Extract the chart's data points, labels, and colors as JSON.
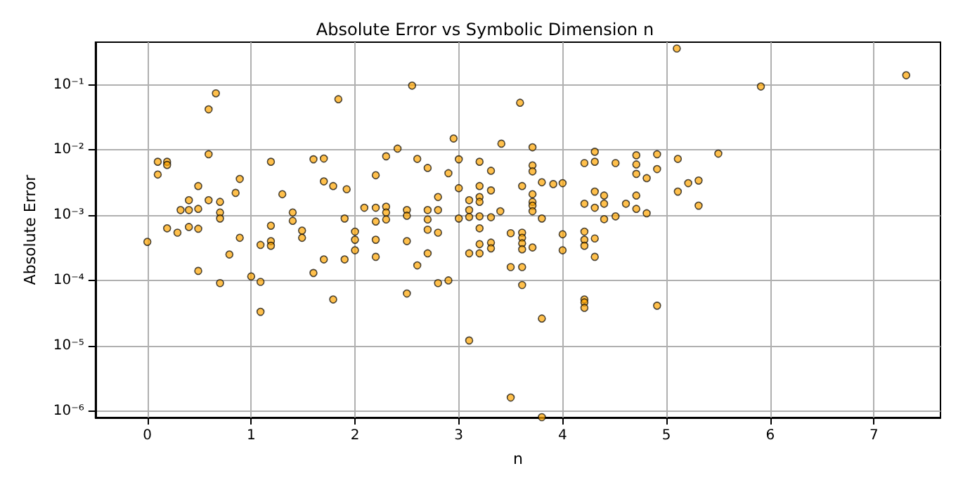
{
  "chart_data": {
    "type": "scatter",
    "title": "Absolute Error vs Symbolic Dimension n",
    "xlabel": "n",
    "ylabel": "Absolute Error",
    "color": "#ffa500",
    "marker": "circle",
    "grid": true,
    "log": "y",
    "xlim": [
      -0.5,
      7.64
    ],
    "xticks": [
      0,
      1,
      2,
      3,
      4,
      5,
      6,
      7
    ],
    "ylim": [
      7.9e-07,
      0.45
    ],
    "yticks": [
      {
        "value": 1e-06,
        "label": "10⁻⁶"
      },
      {
        "value": 1e-05,
        "label": "10⁻⁵"
      },
      {
        "value": 0.0001,
        "label": "10⁻⁴"
      },
      {
        "value": 0.001,
        "label": "10⁻³"
      },
      {
        "value": 0.01,
        "label": "10⁻²"
      },
      {
        "value": 0.1,
        "label": "10⁻¹"
      }
    ],
    "x": [
      0,
      0.1,
      0.1,
      0.19,
      0.19,
      0.19,
      0.29,
      0.32,
      0.4,
      0.4,
      0.4,
      0.49,
      0.49,
      0.49,
      0.49,
      0.59,
      0.66,
      0.59,
      0.59,
      0.7,
      0.7,
      0.7,
      0.7,
      0.79,
      0.85,
      0.89,
      0.89,
      1.0,
      1.09,
      1.09,
      1.09,
      1.19,
      1.19,
      1.19,
      1.19,
      1.3,
      1.4,
      1.4,
      1.49,
      1.49,
      1.6,
      1.6,
      1.7,
      1.7,
      1.7,
      1.79,
      1.79,
      1.84,
      1.9,
      1.9,
      1.92,
      2.0,
      2.0,
      2.0,
      2.09,
      2.2,
      2.2,
      2.2,
      2.2,
      2.2,
      2.3,
      2.3,
      2.3,
      2.3,
      2.41,
      2.5,
      2.5,
      2.5,
      2.5,
      2.55,
      2.6,
      2.6,
      2.7,
      2.7,
      2.7,
      2.7,
      2.7,
      2.8,
      2.8,
      2.8,
      2.8,
      2.9,
      2.9,
      2.95,
      3.0,
      3.0,
      3.0,
      3.1,
      3.1,
      3.1,
      3.1,
      3.1,
      3.2,
      3.2,
      3.2,
      3.2,
      3.2,
      3.2,
      3.2,
      3.2,
      3.31,
      3.31,
      3.31,
      3.31,
      3.31,
      3.41,
      3.4,
      3.5,
      3.5,
      3.5,
      3.59,
      3.61,
      3.61,
      3.61,
      3.61,
      3.61,
      3.61,
      3.61,
      3.71,
      3.71,
      3.71,
      3.71,
      3.71,
      3.71,
      3.71,
      3.71,
      3.8,
      3.8,
      3.8,
      3.8,
      3.91,
      4.0,
      4.0,
      4.0,
      4.21,
      4.21,
      4.21,
      4.21,
      4.21,
      4.21,
      4.21,
      4.21,
      4.31,
      4.31,
      4.31,
      4.31,
      4.31,
      4.31,
      4.4,
      4.4,
      4.4,
      4.51,
      4.51,
      4.61,
      4.71,
      4.71,
      4.71,
      4.71,
      4.71,
      4.81,
      4.81,
      4.91,
      4.91,
      4.91,
      5.1,
      5.11,
      5.11,
      5.21,
      5.31,
      5.31,
      5.5,
      5.91,
      7.31
    ],
    "values": [
      0.00039,
      0.0066,
      0.0042,
      0.0066,
      0.0059,
      0.00063,
      0.00054,
      0.0012,
      0.0017,
      0.0012,
      0.00066,
      0.0028,
      0.00125,
      0.00062,
      0.00014,
      0.042,
      0.074,
      0.0086,
      0.0017,
      0.0016,
      0.0011,
      0.00089,
      9.1e-05,
      0.00025,
      0.0022,
      0.0036,
      0.00045,
      0.000115,
      0.00035,
      9.5e-05,
      3.3e-05,
      0.0066,
      0.00069,
      0.0004,
      0.00034,
      0.0021,
      0.0011,
      0.00082,
      0.00058,
      0.00045,
      0.0072,
      0.00013,
      0.0074,
      0.0033,
      0.00021,
      0.0028,
      5.1e-05,
      0.06,
      0.00089,
      0.00021,
      0.0025,
      0.00056,
      0.00042,
      0.00029,
      0.0013,
      0.0041,
      0.0013,
      0.0008,
      0.00042,
      0.00023,
      0.008,
      0.00135,
      0.0011,
      0.00086,
      0.0105,
      0.0012,
      0.00098,
      0.0004,
      6.3e-05,
      0.097,
      0.0073,
      0.00017,
      0.0053,
      0.0012,
      0.00086,
      0.0006,
      0.00026,
      0.0019,
      0.0012,
      0.00054,
      9.1e-05,
      0.0044,
      0.0001,
      0.015,
      0.0072,
      0.0026,
      0.00089,
      0.0017,
      0.0012,
      0.00094,
      0.00026,
      1.2e-05,
      0.0066,
      0.0028,
      0.0019,
      0.0016,
      0.00096,
      0.00063,
      0.00036,
      0.00026,
      0.0048,
      0.0024,
      0.00093,
      0.00038,
      0.00031,
      0.0125,
      0.00115,
      0.00053,
      0.00016,
      1.6e-06,
      0.053,
      0.0028,
      0.00054,
      0.00045,
      0.00037,
      0.0003,
      0.00016,
      8.5e-05,
      0.011,
      0.0058,
      0.0047,
      0.0021,
      0.0016,
      0.0014,
      0.00115,
      0.00032,
      0.0032,
      0.00089,
      2.6e-05,
      8e-07,
      0.003,
      0.0031,
      0.00051,
      0.00029,
      0.0063,
      0.0015,
      0.00056,
      0.00042,
      0.00034,
      5.1e-05,
      4.6e-05,
      3.8e-05,
      0.0094,
      0.0066,
      0.0023,
      0.0013,
      0.00044,
      0.00023,
      0.002,
      0.0015,
      0.00087,
      0.0063,
      0.00096,
      0.0015,
      0.0083,
      0.006,
      0.0043,
      0.002,
      0.00125,
      0.0037,
      0.00107,
      0.0086,
      0.0051,
      4.1e-05,
      0.36,
      0.0073,
      0.0023,
      0.0031,
      0.0034,
      0.0014,
      0.0088,
      0.094,
      0.14
    ]
  }
}
